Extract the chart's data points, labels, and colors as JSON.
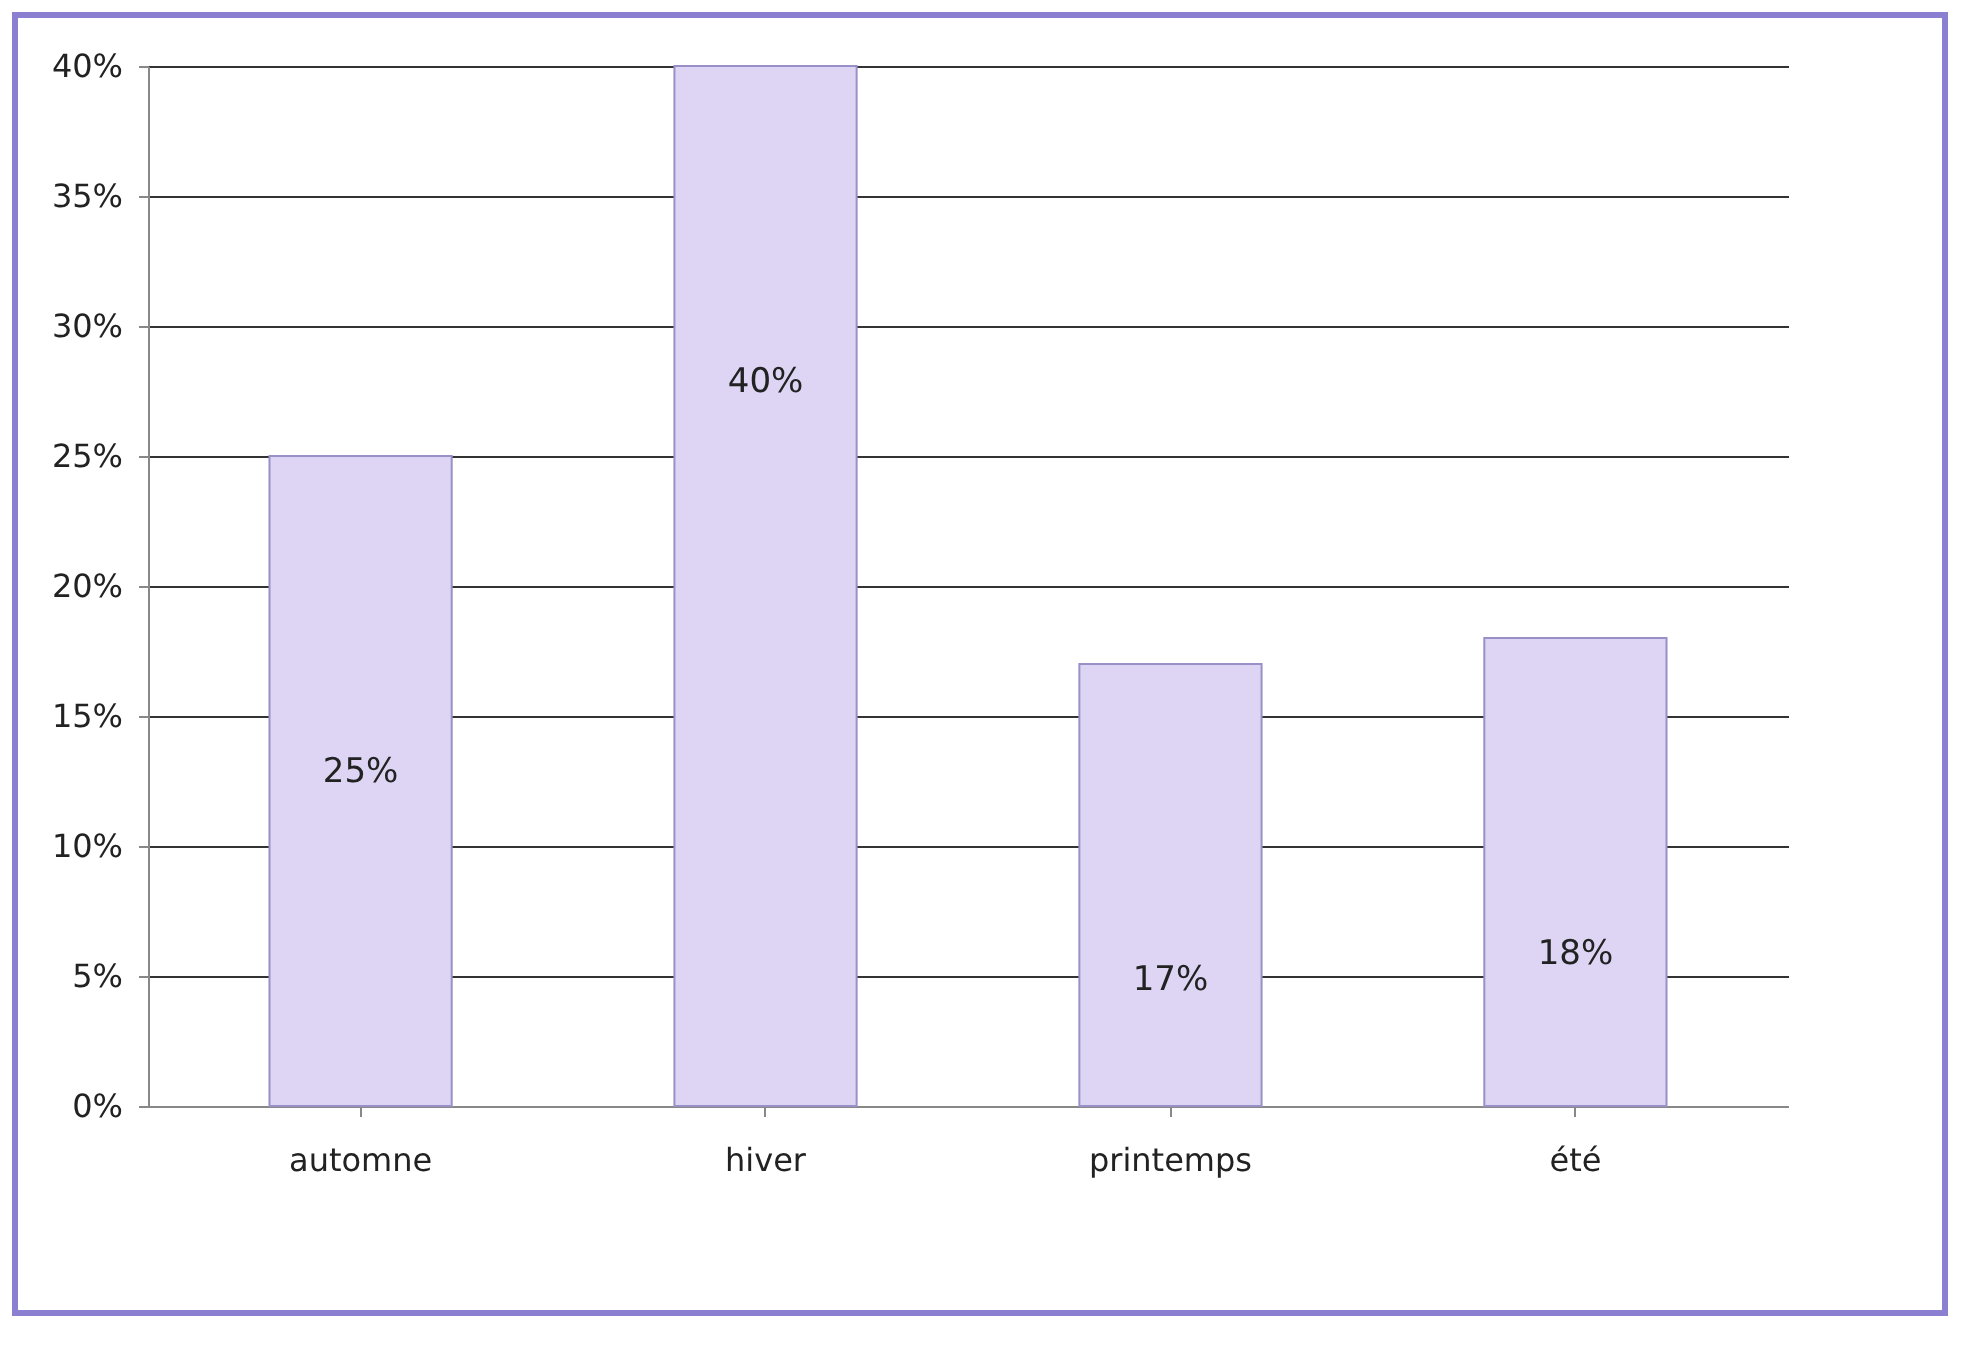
{
  "chart_data": {
    "type": "bar",
    "categories": [
      "automne",
      "hiver",
      "printemps",
      "été"
    ],
    "values": [
      25,
      40,
      17,
      18
    ],
    "value_labels": [
      "25%",
      "40%",
      "17%",
      "18%"
    ],
    "color": "#ddd5f3",
    "ylim": [
      0,
      40
    ],
    "yticks": [
      {
        "value": 0,
        "label": "0%"
      },
      {
        "value": 5,
        "label": "5%"
      },
      {
        "value": 10,
        "label": "10%"
      },
      {
        "value": 15,
        "label": "15%"
      },
      {
        "value": 20,
        "label": "20%"
      },
      {
        "value": 25,
        "label": "25%"
      },
      {
        "value": 30,
        "label": "30%"
      },
      {
        "value": 35,
        "label": "35%"
      },
      {
        "value": 40,
        "label": "40%"
      }
    ],
    "grid": "y"
  }
}
